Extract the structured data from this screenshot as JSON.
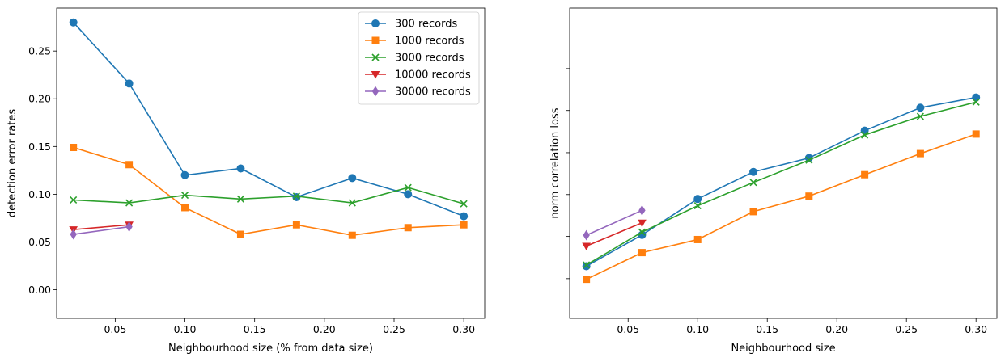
{
  "chart_data": [
    {
      "type": "line",
      "xlabel": "Neighbourhood size (% from data size)",
      "ylabel": "detection error rates",
      "xlim": [
        0.008,
        0.315
      ],
      "ylim": [
        -0.03,
        0.295
      ],
      "xticks": [
        0.05,
        0.1,
        0.15,
        0.2,
        0.25,
        0.3
      ],
      "xtick_labels": [
        "0.05",
        "0.10",
        "0.15",
        "0.20",
        "0.25",
        "0.30"
      ],
      "yticks": [
        0.0,
        0.05,
        0.1,
        0.15,
        0.2,
        0.25
      ],
      "ytick_labels": [
        "0.00",
        "0.05",
        "0.10",
        "0.15",
        "0.20",
        "0.25"
      ],
      "grid": false,
      "legend_position": "top-right",
      "series": [
        {
          "name": "300 records",
          "color": "#1f77b4",
          "marker": "circle",
          "x": [
            0.02,
            0.06,
            0.1,
            0.14,
            0.18,
            0.22,
            0.26,
            0.3
          ],
          "y": [
            0.28,
            0.216,
            0.12,
            0.127,
            0.097,
            0.117,
            0.1,
            0.077
          ]
        },
        {
          "name": "1000 records",
          "color": "#ff7f0e",
          "marker": "square",
          "x": [
            0.02,
            0.06,
            0.1,
            0.14,
            0.18,
            0.22,
            0.26,
            0.3
          ],
          "y": [
            0.149,
            0.131,
            0.086,
            0.058,
            0.068,
            0.057,
            0.065,
            0.068
          ]
        },
        {
          "name": "3000 records",
          "color": "#2ca02c",
          "marker": "x",
          "x": [
            0.02,
            0.06,
            0.1,
            0.14,
            0.18,
            0.22,
            0.26,
            0.3
          ],
          "y": [
            0.094,
            0.091,
            0.099,
            0.095,
            0.098,
            0.091,
            0.107,
            0.09
          ]
        },
        {
          "name": "10000 records",
          "color": "#d62728",
          "marker": "triangle-down",
          "x": [
            0.02,
            0.06
          ],
          "y": [
            0.063,
            0.068
          ]
        },
        {
          "name": "30000 records",
          "color": "#9467bd",
          "marker": "diamond",
          "x": [
            0.02,
            0.06
          ],
          "y": [
            0.058,
            0.066
          ]
        }
      ]
    },
    {
      "type": "line",
      "xlabel": "Neighbourhood size",
      "ylabel": "norm correlation loss",
      "xlim": [
        0.008,
        0.315
      ],
      "ylim": [
        0.0,
        1.0
      ],
      "xticks": [
        0.05,
        0.1,
        0.15,
        0.2,
        0.25,
        0.3
      ],
      "xtick_labels": [
        "0.05",
        "0.10",
        "0.15",
        "0.20",
        "0.25",
        "0.30"
      ],
      "yticks": [
        0.128,
        0.264,
        0.399,
        0.534,
        0.67,
        0.805
      ],
      "ytick_labels": [
        "",
        "",
        "",
        "",
        "",
        ""
      ],
      "grid": false,
      "series": [
        {
          "color": "#1f77b4",
          "marker": "circle",
          "x": [
            0.02,
            0.06,
            0.1,
            0.14,
            0.18,
            0.22,
            0.26,
            0.3
          ],
          "y": [
            0.168,
            0.269,
            0.385,
            0.472,
            0.517,
            0.605,
            0.679,
            0.712
          ]
        },
        {
          "color": "#ff7f0e",
          "marker": "square",
          "x": [
            0.02,
            0.06,
            0.1,
            0.14,
            0.18,
            0.22,
            0.26,
            0.3
          ],
          "y": [
            0.126,
            0.212,
            0.254,
            0.344,
            0.394,
            0.463,
            0.531,
            0.594
          ]
        },
        {
          "color": "#2ca02c",
          "marker": "x",
          "x": [
            0.02,
            0.06,
            0.1,
            0.14,
            0.18,
            0.22,
            0.26,
            0.3
          ],
          "y": [
            0.172,
            0.278,
            0.363,
            0.438,
            0.51,
            0.591,
            0.651,
            0.697
          ]
        },
        {
          "color": "#d62728",
          "marker": "triangle-down",
          "x": [
            0.02,
            0.06
          ],
          "y": [
            0.233,
            0.308
          ]
        },
        {
          "color": "#9467bd",
          "marker": "diamond",
          "x": [
            0.02,
            0.06
          ],
          "y": [
            0.268,
            0.348
          ]
        }
      ]
    }
  ]
}
